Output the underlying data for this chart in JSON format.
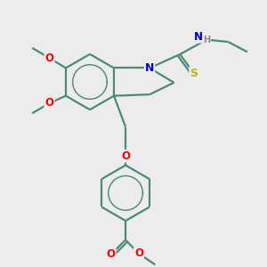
{
  "bg_color": "#ececec",
  "bond_color": "#4a8a7a",
  "bond_width": 1.6,
  "atom_colors": {
    "O": "#ff0000",
    "N": "#0000cc",
    "S": "#bbbb00",
    "H": "#888888",
    "C": "#333333"
  }
}
